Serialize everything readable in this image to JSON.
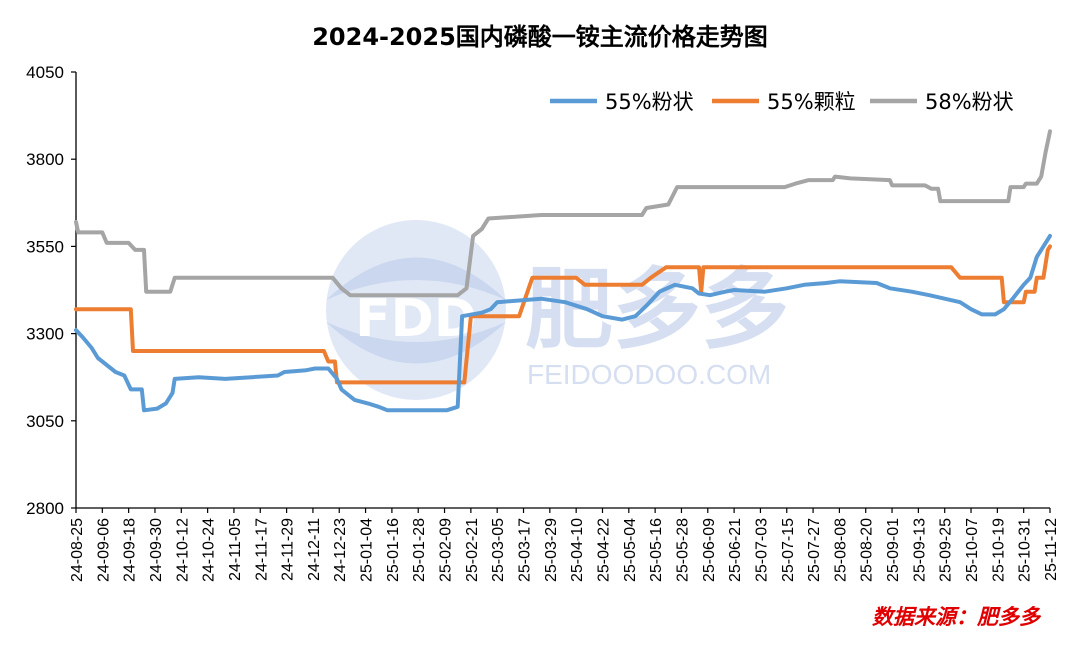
{
  "chart_data": {
    "type": "line",
    "title": "2024-2025国内磷酸一铵主流价格走势图",
    "xlabel": "",
    "ylabel": "",
    "ylim": [
      2800,
      4050
    ],
    "yticks": [
      2800,
      3050,
      3300,
      3550,
      3800,
      4050
    ],
    "x_range": [
      "2024-08-25",
      "2025-11-12"
    ],
    "xtick_labels": [
      "24-08-25",
      "24-09-06",
      "24-09-18",
      "24-09-30",
      "24-10-12",
      "24-10-24",
      "24-11-05",
      "24-11-17",
      "24-11-29",
      "24-12-11",
      "24-12-23",
      "25-01-04",
      "25-01-16",
      "25-01-28",
      "25-02-09",
      "25-02-21",
      "25-03-05",
      "25-03-17",
      "25-03-29",
      "25-04-10",
      "25-04-22",
      "25-05-04",
      "25-05-16",
      "25-05-28",
      "25-06-09",
      "25-06-21",
      "25-07-03",
      "25-07-15",
      "25-07-27",
      "25-08-08",
      "25-08-20",
      "25-09-01",
      "25-09-13",
      "25-09-25",
      "25-10-07",
      "25-10-19",
      "25-10-31",
      "25-11-12"
    ],
    "legend_position": "top-right",
    "grid": false,
    "series": [
      {
        "name": "55%粉状",
        "color": "#5B9BD5",
        "points": [
          [
            "2024-08-25",
            3310
          ],
          [
            "2024-08-28",
            3290
          ],
          [
            "2024-09-01",
            3260
          ],
          [
            "2024-09-04",
            3230
          ],
          [
            "2024-09-08",
            3210
          ],
          [
            "2024-09-12",
            3190
          ],
          [
            "2024-09-16",
            3180
          ],
          [
            "2024-09-19",
            3140
          ],
          [
            "2024-09-24",
            3140
          ],
          [
            "2024-09-25",
            3080
          ],
          [
            "2024-10-01",
            3085
          ],
          [
            "2024-10-05",
            3100
          ],
          [
            "2024-10-08",
            3130
          ],
          [
            "2024-10-09",
            3170
          ],
          [
            "2024-10-20",
            3175
          ],
          [
            "2024-11-01",
            3170
          ],
          [
            "2024-11-13",
            3175
          ],
          [
            "2024-11-25",
            3180
          ],
          [
            "2024-11-28",
            3190
          ],
          [
            "2024-12-08",
            3195
          ],
          [
            "2024-12-12",
            3200
          ],
          [
            "2024-12-18",
            3200
          ],
          [
            "2024-12-22",
            3170
          ],
          [
            "2024-12-24",
            3140
          ],
          [
            "2024-12-30",
            3110
          ],
          [
            "2025-01-05",
            3100
          ],
          [
            "2025-01-10",
            3090
          ],
          [
            "2025-01-14",
            3080
          ],
          [
            "2025-02-10",
            3080
          ],
          [
            "2025-02-15",
            3090
          ],
          [
            "2025-02-17",
            3350
          ],
          [
            "2025-02-26",
            3360
          ],
          [
            "2025-03-02",
            3370
          ],
          [
            "2025-03-05",
            3390
          ],
          [
            "2025-03-25",
            3400
          ],
          [
            "2025-04-05",
            3390
          ],
          [
            "2025-04-15",
            3370
          ],
          [
            "2025-04-22",
            3350
          ],
          [
            "2025-05-01",
            3340
          ],
          [
            "2025-05-07",
            3350
          ],
          [
            "2025-05-12",
            3380
          ],
          [
            "2025-05-18",
            3420
          ],
          [
            "2025-05-25",
            3440
          ],
          [
            "2025-06-02",
            3430
          ],
          [
            "2025-06-05",
            3415
          ],
          [
            "2025-06-10",
            3410
          ],
          [
            "2025-06-17",
            3420
          ],
          [
            "2025-06-21",
            3425
          ],
          [
            "2025-07-05",
            3420
          ],
          [
            "2025-07-15",
            3430
          ],
          [
            "2025-07-23",
            3440
          ],
          [
            "2025-08-02",
            3445
          ],
          [
            "2025-08-08",
            3450
          ],
          [
            "2025-08-25",
            3445
          ],
          [
            "2025-08-31",
            3430
          ],
          [
            "2025-09-10",
            3420
          ],
          [
            "2025-09-18",
            3410
          ],
          [
            "2025-09-25",
            3400
          ],
          [
            "2025-10-02",
            3390
          ],
          [
            "2025-10-07",
            3370
          ],
          [
            "2025-10-12",
            3355
          ],
          [
            "2025-10-18",
            3355
          ],
          [
            "2025-10-22",
            3370
          ],
          [
            "2025-10-26",
            3400
          ],
          [
            "2025-10-31",
            3440
          ],
          [
            "2025-11-03",
            3460
          ],
          [
            "2025-11-06",
            3520
          ],
          [
            "2025-11-09",
            3550
          ],
          [
            "2025-11-12",
            3580
          ]
        ]
      },
      {
        "name": "55%颗粒",
        "color": "#ED7D31",
        "points": [
          [
            "2024-08-25",
            3370
          ],
          [
            "2024-09-19",
            3370
          ],
          [
            "2024-09-20",
            3250
          ],
          [
            "2024-12-16",
            3250
          ],
          [
            "2024-12-18",
            3220
          ],
          [
            "2024-12-21",
            3220
          ],
          [
            "2024-12-22",
            3160
          ],
          [
            "2025-02-18",
            3160
          ],
          [
            "2025-02-21",
            3350
          ],
          [
            "2025-03-15",
            3350
          ],
          [
            "2025-03-21",
            3460
          ],
          [
            "2025-04-10",
            3460
          ],
          [
            "2025-04-14",
            3440
          ],
          [
            "2025-05-10",
            3440
          ],
          [
            "2025-05-14",
            3460
          ],
          [
            "2025-05-21",
            3490
          ],
          [
            "2025-06-05",
            3490
          ],
          [
            "2025-06-06",
            3420
          ],
          [
            "2025-06-07",
            3490
          ],
          [
            "2025-09-28",
            3490
          ],
          [
            "2025-10-02",
            3460
          ],
          [
            "2025-10-21",
            3460
          ],
          [
            "2025-10-22",
            3390
          ],
          [
            "2025-10-31",
            3390
          ],
          [
            "2025-11-01",
            3420
          ],
          [
            "2025-11-05",
            3420
          ],
          [
            "2025-11-06",
            3460
          ],
          [
            "2025-11-09",
            3460
          ],
          [
            "2025-11-11",
            3540
          ],
          [
            "2025-11-12",
            3550
          ]
        ]
      },
      {
        "name": "58%粉状",
        "color": "#A5A5A5",
        "points": [
          [
            "2024-08-25",
            3620
          ],
          [
            "2024-08-26",
            3590
          ],
          [
            "2024-09-06",
            3590
          ],
          [
            "2024-09-08",
            3560
          ],
          [
            "2024-09-18",
            3560
          ],
          [
            "2024-09-21",
            3540
          ],
          [
            "2024-09-25",
            3540
          ],
          [
            "2024-09-26",
            3420
          ],
          [
            "2024-10-07",
            3420
          ],
          [
            "2024-10-09",
            3460
          ],
          [
            "2024-12-20",
            3460
          ],
          [
            "2024-12-24",
            3430
          ],
          [
            "2024-12-28",
            3410
          ],
          [
            "2025-02-15",
            3410
          ],
          [
            "2025-02-19",
            3430
          ],
          [
            "2025-02-22",
            3580
          ],
          [
            "2025-02-26",
            3600
          ],
          [
            "2025-03-01",
            3630
          ],
          [
            "2025-03-25",
            3640
          ],
          [
            "2025-05-10",
            3640
          ],
          [
            "2025-05-12",
            3660
          ],
          [
            "2025-05-22",
            3670
          ],
          [
            "2025-05-26",
            3720
          ],
          [
            "2025-07-14",
            3720
          ],
          [
            "2025-07-19",
            3730
          ],
          [
            "2025-07-25",
            3740
          ],
          [
            "2025-08-05",
            3740
          ],
          [
            "2025-08-06",
            3750
          ],
          [
            "2025-08-13",
            3745
          ],
          [
            "2025-08-31",
            3740
          ],
          [
            "2025-09-01",
            3725
          ],
          [
            "2025-09-16",
            3725
          ],
          [
            "2025-09-19",
            3715
          ],
          [
            "2025-09-22",
            3715
          ],
          [
            "2025-09-23",
            3680
          ],
          [
            "2025-10-24",
            3680
          ],
          [
            "2025-10-25",
            3720
          ],
          [
            "2025-10-31",
            3720
          ],
          [
            "2025-11-01",
            3730
          ],
          [
            "2025-11-06",
            3730
          ],
          [
            "2025-11-08",
            3750
          ],
          [
            "2025-11-10",
            3820
          ],
          [
            "2025-11-12",
            3880
          ]
        ]
      }
    ]
  },
  "watermark": {
    "logo_text": "FDD",
    "brand_cn": "肥多多",
    "brand_url": "FEIDOODOO.COM"
  },
  "source_note": "数据来源：肥多多"
}
